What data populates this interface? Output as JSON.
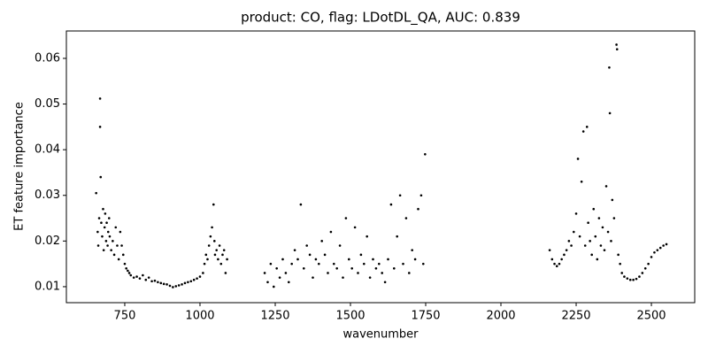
{
  "chart_data": {
    "type": "scatter",
    "title": "product: CO, flag: LDotDL_QA, AUC: 0.839",
    "xlabel": "wavenumber",
    "ylabel": "ET feature importance",
    "color": "#000000",
    "xlim": [
      556,
      2644
    ],
    "ylim": [
      0.0065,
      0.066
    ],
    "xticks": [
      750,
      1000,
      1250,
      1500,
      1750,
      2000,
      2250,
      2500
    ],
    "yticks": [
      0.01,
      0.02,
      0.03,
      0.04,
      0.05,
      0.06
    ],
    "x": [
      655,
      660,
      662,
      665,
      668,
      668,
      670,
      672,
      675,
      678,
      680,
      683,
      685,
      688,
      690,
      693,
      695,
      698,
      700,
      705,
      710,
      715,
      720,
      725,
      730,
      735,
      740,
      745,
      750,
      755,
      760,
      765,
      770,
      780,
      790,
      800,
      810,
      820,
      830,
      840,
      850,
      860,
      870,
      880,
      890,
      900,
      910,
      920,
      930,
      940,
      950,
      960,
      970,
      980,
      990,
      1000,
      1010,
      1015,
      1020,
      1025,
      1030,
      1035,
      1040,
      1045,
      1048,
      1050,
      1055,
      1060,
      1065,
      1070,
      1075,
      1080,
      1085,
      1090,
      1215,
      1225,
      1235,
      1245,
      1255,
      1265,
      1275,
      1285,
      1295,
      1305,
      1315,
      1325,
      1335,
      1345,
      1355,
      1365,
      1375,
      1385,
      1395,
      1405,
      1415,
      1425,
      1435,
      1445,
      1455,
      1465,
      1475,
      1485,
      1495,
      1505,
      1515,
      1525,
      1535,
      1545,
      1555,
      1565,
      1575,
      1585,
      1595,
      1605,
      1615,
      1625,
      1635,
      1645,
      1655,
      1665,
      1675,
      1685,
      1695,
      1705,
      1715,
      1725,
      1735,
      1742,
      1748,
      2162,
      2170,
      2178,
      2186,
      2194,
      2202,
      2210,
      2218,
      2226,
      2234,
      2242,
      2250,
      2256,
      2262,
      2268,
      2274,
      2280,
      2286,
      2290,
      2296,
      2302,
      2308,
      2314,
      2320,
      2326,
      2332,
      2338,
      2344,
      2350,
      2356,
      2360,
      2362,
      2366,
      2370,
      2376,
      2384,
      2386,
      2390,
      2396,
      2402,
      2410,
      2420,
      2430,
      2440,
      2450,
      2460,
      2470,
      2480,
      2490,
      2500,
      2510,
      2520,
      2530,
      2540,
      2550
    ],
    "values": [
      0.0305,
      0.022,
      0.019,
      0.025,
      0.0512,
      0.045,
      0.034,
      0.024,
      0.021,
      0.027,
      0.018,
      0.023,
      0.026,
      0.02,
      0.024,
      0.019,
      0.022,
      0.025,
      0.021,
      0.018,
      0.02,
      0.017,
      0.023,
      0.019,
      0.016,
      0.022,
      0.019,
      0.017,
      0.015,
      0.014,
      0.0135,
      0.013,
      0.0125,
      0.012,
      0.0122,
      0.0118,
      0.0125,
      0.0115,
      0.012,
      0.0112,
      0.0113,
      0.011,
      0.0108,
      0.0106,
      0.0105,
      0.0102,
      0.0099,
      0.0101,
      0.0103,
      0.0105,
      0.0108,
      0.011,
      0.0112,
      0.0115,
      0.0118,
      0.0122,
      0.013,
      0.015,
      0.017,
      0.016,
      0.019,
      0.021,
      0.023,
      0.028,
      0.02,
      0.017,
      0.018,
      0.016,
      0.019,
      0.015,
      0.017,
      0.018,
      0.013,
      0.016,
      0.013,
      0.011,
      0.015,
      0.01,
      0.014,
      0.012,
      0.016,
      0.013,
      0.011,
      0.015,
      0.018,
      0.016,
      0.028,
      0.014,
      0.019,
      0.017,
      0.012,
      0.016,
      0.015,
      0.02,
      0.017,
      0.013,
      0.022,
      0.015,
      0.014,
      0.019,
      0.012,
      0.025,
      0.016,
      0.014,
      0.023,
      0.013,
      0.017,
      0.015,
      0.021,
      0.012,
      0.016,
      0.014,
      0.015,
      0.013,
      0.011,
      0.016,
      0.028,
      0.014,
      0.021,
      0.03,
      0.015,
      0.025,
      0.013,
      0.018,
      0.016,
      0.027,
      0.03,
      0.015,
      0.039,
      0.018,
      0.016,
      0.015,
      0.0145,
      0.015,
      0.016,
      0.017,
      0.018,
      0.02,
      0.019,
      0.022,
      0.026,
      0.038,
      0.021,
      0.033,
      0.044,
      0.019,
      0.045,
      0.024,
      0.02,
      0.017,
      0.027,
      0.021,
      0.016,
      0.025,
      0.019,
      0.023,
      0.018,
      0.032,
      0.022,
      0.058,
      0.048,
      0.02,
      0.029,
      0.025,
      0.063,
      0.062,
      0.017,
      0.015,
      0.013,
      0.0122,
      0.0118,
      0.0115,
      0.0115,
      0.0117,
      0.0122,
      0.013,
      0.014,
      0.015,
      0.0165,
      0.0175,
      0.018,
      0.0185,
      0.019,
      0.0193
    ]
  }
}
